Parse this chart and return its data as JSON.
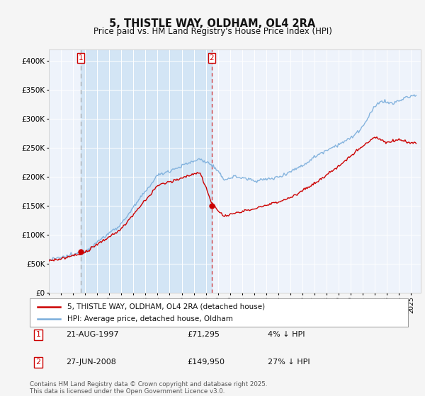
{
  "title": "5, THISTLE WAY, OLDHAM, OL4 2RA",
  "subtitle": "Price paid vs. HM Land Registry's House Price Index (HPI)",
  "ylim": [
    0,
    420000
  ],
  "xlim_start": 1995.0,
  "xlim_end": 2025.8,
  "legend_label_red": "5, THISTLE WAY, OLDHAM, OL4 2RA (detached house)",
  "legend_label_blue": "HPI: Average price, detached house, Oldham",
  "event1_x": 1997.64,
  "event1_y": 71295,
  "event1_date": "21-AUG-1997",
  "event1_price": "£71,295",
  "event1_note": "4% ↓ HPI",
  "event2_x": 2008.49,
  "event2_y": 149950,
  "event2_date": "27-JUN-2008",
  "event2_price": "£149,950",
  "event2_note": "27% ↓ HPI",
  "footer": "Contains HM Land Registry data © Crown copyright and database right 2025.\nThis data is licensed under the Open Government Licence v3.0.",
  "bg_color": "#eef3fb",
  "fig_color": "#f5f5f5",
  "red_color": "#cc0000",
  "blue_color": "#7aaddb",
  "shade_color": "#d0e4f5",
  "grid_color": "#ffffff",
  "event1_vline_color": "#aaaaaa",
  "event2_vline_color": "#dd0000"
}
